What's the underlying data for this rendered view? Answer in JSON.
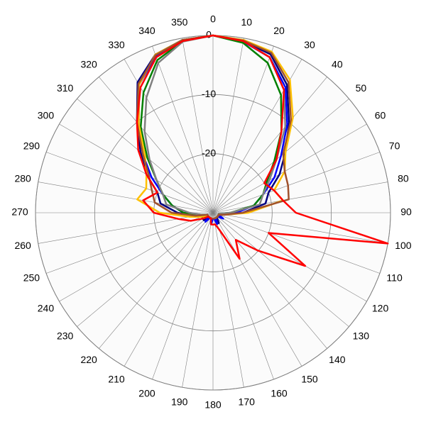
{
  "chart_data": {
    "type": "polar",
    "theta": [
      0,
      10,
      20,
      30,
      40,
      50,
      60,
      70,
      80,
      90,
      100,
      110,
      120,
      130,
      140,
      150,
      160,
      170,
      180,
      190,
      200,
      210,
      220,
      230,
      240,
      250,
      260,
      270,
      280,
      290,
      300,
      310,
      320,
      330,
      340,
      350
    ],
    "rlim": [
      -30,
      0
    ],
    "rticks": [
      -20,
      -10,
      0
    ],
    "grid": true,
    "series": [
      {
        "color": "#000080",
        "values": [
          0,
          -0.5,
          -1.5,
          -5,
          -10,
          -14,
          -17,
          -20,
          -21,
          -25,
          -28,
          -29,
          -29,
          -29,
          -29,
          -28,
          -28,
          -29,
          -29,
          -29,
          -29,
          -29,
          -29,
          -28,
          -28,
          -28,
          -27,
          -24,
          -21,
          -20,
          -17,
          -14,
          -10,
          -4.5,
          -1.5,
          -0.3
        ]
      },
      {
        "color": "#0000ff",
        "values": [
          0,
          -0.6,
          -2,
          -5.5,
          -10.5,
          -15,
          -18,
          -21,
          -23,
          -26,
          -29,
          -29,
          -28,
          -29,
          -29,
          -29,
          -28,
          -29,
          -29,
          -28,
          -29,
          -29,
          -28,
          -29,
          -29,
          -29,
          -28,
          -25,
          -23,
          -21,
          -18,
          -14.5,
          -10.5,
          -5,
          -1.8,
          -0.4
        ]
      },
      {
        "color": "#008000",
        "values": [
          0,
          -0.8,
          -3,
          -7,
          -12,
          -16.5,
          -19.5,
          -21,
          -23,
          -27,
          -29,
          -29,
          -29,
          -29,
          -29,
          -29,
          -29,
          -29,
          -29,
          -29,
          -29,
          -29,
          -29,
          -29,
          -29,
          -29,
          -28,
          -25,
          -23,
          -21,
          -19,
          -15.5,
          -11,
          -6.5,
          -2.5,
          -0.5
        ]
      },
      {
        "color": "#808080",
        "values": [
          0,
          -0.5,
          -2,
          -6,
          -11,
          -16,
          -19,
          -21,
          -22,
          -27,
          -29,
          -29,
          -29,
          -29,
          -29,
          -29,
          -29,
          -29,
          -29,
          -29,
          -29,
          -29,
          -29,
          -29,
          -29,
          -29,
          -28,
          -26,
          -22,
          -21,
          -19,
          -16,
          -12,
          -7.5,
          -3,
          -0.6
        ]
      },
      {
        "color": "#ffc000",
        "values": [
          0,
          -0.3,
          -1,
          -4,
          -9,
          -14,
          -16,
          -19,
          -18,
          -24,
          -28,
          -29,
          -29,
          -29,
          -29,
          -29,
          -29,
          -29,
          -29,
          -29,
          -29,
          -29,
          -29,
          -29,
          -29,
          -28,
          -26,
          -21,
          -17,
          -18,
          -17,
          -15,
          -10.5,
          -5,
          -1.5,
          -0.3
        ]
      },
      {
        "color": "#a0522d",
        "values": [
          0,
          -0.4,
          -1.2,
          -4.5,
          -9.5,
          -14.5,
          -16,
          -16.5,
          -17,
          -25,
          -28,
          -29,
          -29,
          -29,
          -29,
          -29,
          -29,
          -29,
          -29,
          -29,
          -29,
          -29,
          -29,
          -29,
          -29,
          -29,
          -27,
          -23,
          -20,
          -19,
          -17.5,
          -14.5,
          -10,
          -4.8,
          -1.6,
          -0.3
        ]
      },
      {
        "color": "#ff0000",
        "values": [
          0,
          -0.5,
          -2,
          -6,
          -12,
          -16,
          -20,
          -19,
          -18,
          -16,
          0,
          -20,
          -12,
          -20,
          -24,
          -21,
          -27,
          -28,
          -28,
          -28,
          -29,
          -29,
          -29,
          -29,
          -28,
          -26,
          -24,
          -20,
          -18,
          -20,
          -17,
          -13.5,
          -10,
          -5.5,
          -2,
          -0.5
        ]
      }
    ]
  }
}
